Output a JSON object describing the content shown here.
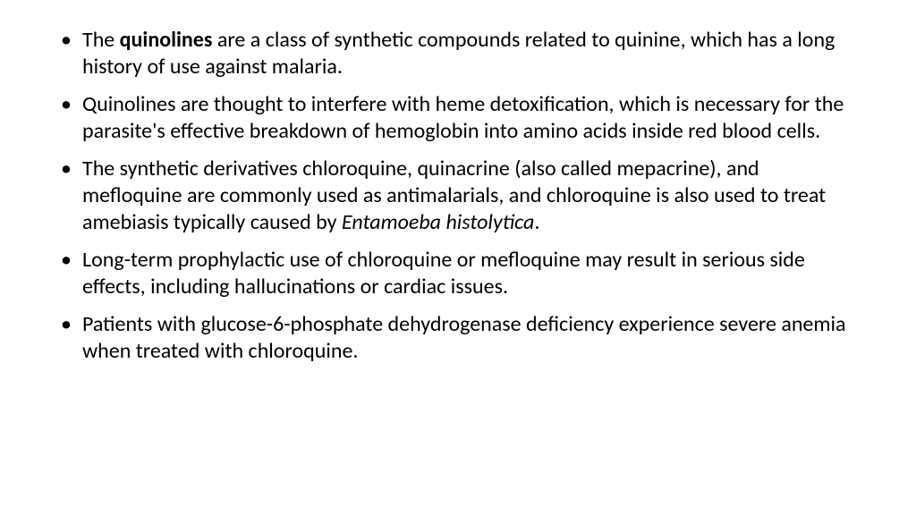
{
  "slide": {
    "background_color": "#ffffff",
    "text_color": "#000000",
    "font_family": "Calibri",
    "font_size_pt": 24,
    "line_height": 1.25,
    "bullets": [
      {
        "segments": [
          {
            "text": "The ",
            "bold": false,
            "italic": false
          },
          {
            "text": "quinolines",
            "bold": true,
            "italic": false
          },
          {
            "text": " are a class of synthetic compounds related to quinine, which has a long history of use against malaria.",
            "bold": false,
            "italic": false
          }
        ]
      },
      {
        "segments": [
          {
            "text": "Quinolines are thought to interfere with heme detoxification, which is necessary for the parasite's effective breakdown of hemoglobin into amino acids inside red blood cells.",
            "bold": false,
            "italic": false
          }
        ]
      },
      {
        "segments": [
          {
            "text": "The synthetic derivatives chloroquine, quinacrine (also called mepacrine), and mefloquine are commonly used as antimalarials, and chloroquine is also used to treat amebiasis typically caused by ",
            "bold": false,
            "italic": false
          },
          {
            "text": "Entamoeba histolytica",
            "bold": false,
            "italic": true
          },
          {
            "text": ".",
            "bold": false,
            "italic": false
          }
        ]
      },
      {
        "segments": [
          {
            "text": "Long-term prophylactic use of chloroquine or mefloquine may result in serious side effects, including hallucinations or cardiac issues.",
            "bold": false,
            "italic": false
          }
        ]
      },
      {
        "segments": [
          {
            "text": "Patients with glucose-6-phosphate dehydrogenase deficiency experience severe anemia when treated with chloroquine.",
            "bold": false,
            "italic": false
          }
        ]
      }
    ]
  }
}
